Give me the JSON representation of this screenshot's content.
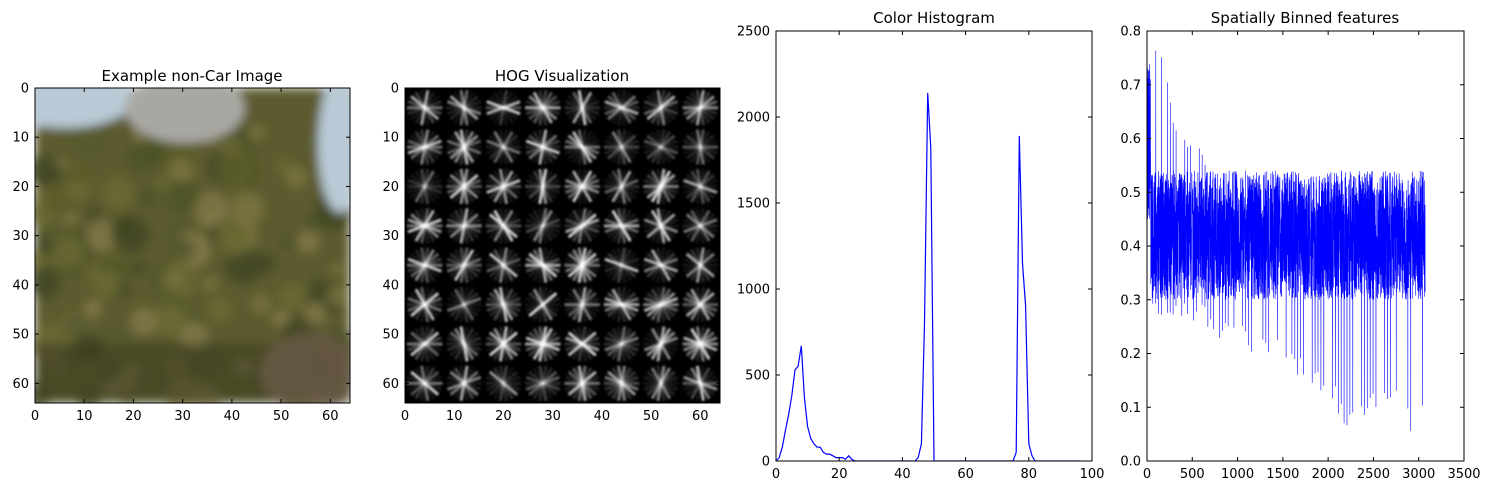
{
  "chart_data": [
    {
      "type": "image",
      "title": "Example non-Car Image",
      "xlim": [
        0,
        64
      ],
      "ylim": [
        64,
        0
      ],
      "x_ticks": [
        0,
        10,
        20,
        30,
        40,
        50,
        60
      ],
      "y_ticks": [
        0,
        10,
        20,
        30,
        40,
        50,
        60
      ],
      "colors": {
        "sky": "#b9cad6",
        "foliage": "#5c5a2e",
        "dark": "#3a3a22",
        "ground": "#6b5a48"
      }
    },
    {
      "type": "heatmap",
      "title": "HOG Visualization",
      "xlim": [
        0,
        64
      ],
      "ylim": [
        64,
        0
      ],
      "x_ticks": [
        0,
        10,
        20,
        30,
        40,
        50,
        60
      ],
      "y_ticks": [
        0,
        10,
        20,
        30,
        40,
        50,
        60
      ],
      "cells": 8,
      "colors": {
        "background": "#000000",
        "stroke": "#ffffff"
      }
    },
    {
      "type": "line",
      "title": "Color Histogram",
      "xlim": [
        0,
        100
      ],
      "ylim": [
        0,
        2500
      ],
      "x_ticks": [
        0,
        20,
        40,
        60,
        80,
        100
      ],
      "y_ticks": [
        0,
        500,
        1000,
        1500,
        2000,
        2500
      ],
      "color": "#0000ff",
      "series": [
        {
          "x": [
            0,
            1,
            2,
            3,
            4,
            5,
            6,
            7,
            8,
            9,
            10,
            11,
            12,
            13,
            14,
            15,
            16,
            17,
            18,
            19,
            20,
            21,
            22,
            23,
            24,
            25,
            26,
            30,
            40,
            44,
            45,
            46,
            47,
            48,
            49,
            50,
            51,
            60,
            70,
            75,
            76,
            77,
            78,
            79,
            80,
            81,
            82,
            90,
            96
          ],
          "y": [
            0,
            20,
            80,
            180,
            270,
            380,
            530,
            550,
            670,
            370,
            200,
            130,
            100,
            80,
            80,
            50,
            40,
            40,
            30,
            20,
            20,
            20,
            10,
            30,
            10,
            0,
            0,
            0,
            0,
            0,
            20,
            100,
            800,
            2140,
            1820,
            0,
            0,
            0,
            0,
            0,
            50,
            1890,
            1150,
            900,
            100,
            30,
            0,
            0,
            0
          ]
        }
      ]
    },
    {
      "type": "line",
      "title": "Spatially Binned features",
      "xlim": [
        0,
        3500
      ],
      "ylim": [
        0,
        0.8
      ],
      "x_ticks": [
        0,
        500,
        1000,
        1500,
        2000,
        2500,
        3000,
        3500
      ],
      "y_ticks": [
        "0.0",
        "0.1",
        "0.2",
        "0.3",
        "0.4",
        "0.5",
        "0.6",
        "0.7",
        "0.8"
      ],
      "color": "#0000ff",
      "n_points": 3072,
      "highs": [
        {
          "x": 10,
          "y": 0.76
        },
        {
          "x": 100,
          "y": 0.77
        },
        {
          "x": 200,
          "y": 0.76
        },
        {
          "x": 270,
          "y": 0.65
        },
        {
          "x": 420,
          "y": 0.62
        },
        {
          "x": 500,
          "y": 0.59
        },
        {
          "x": 600,
          "y": 0.58
        },
        {
          "x": 680,
          "y": 0.565
        }
      ],
      "lows": [
        {
          "x": 120,
          "y": 0.26
        },
        {
          "x": 400,
          "y": 0.27
        },
        {
          "x": 800,
          "y": 0.22
        },
        {
          "x": 1200,
          "y": 0.2
        },
        {
          "x": 1500,
          "y": 0.18
        },
        {
          "x": 1780,
          "y": 0.13
        },
        {
          "x": 2080,
          "y": 0.09
        },
        {
          "x": 2200,
          "y": 0.03
        },
        {
          "x": 2420,
          "y": 0.08
        },
        {
          "x": 2750,
          "y": 0.1
        },
        {
          "x": 2900,
          "y": 0.04
        },
        {
          "x": 3000,
          "y": 0.06
        },
        {
          "x": 3072,
          "y": 0.08
        }
      ],
      "typical_range": [
        0.3,
        0.54
      ]
    }
  ]
}
